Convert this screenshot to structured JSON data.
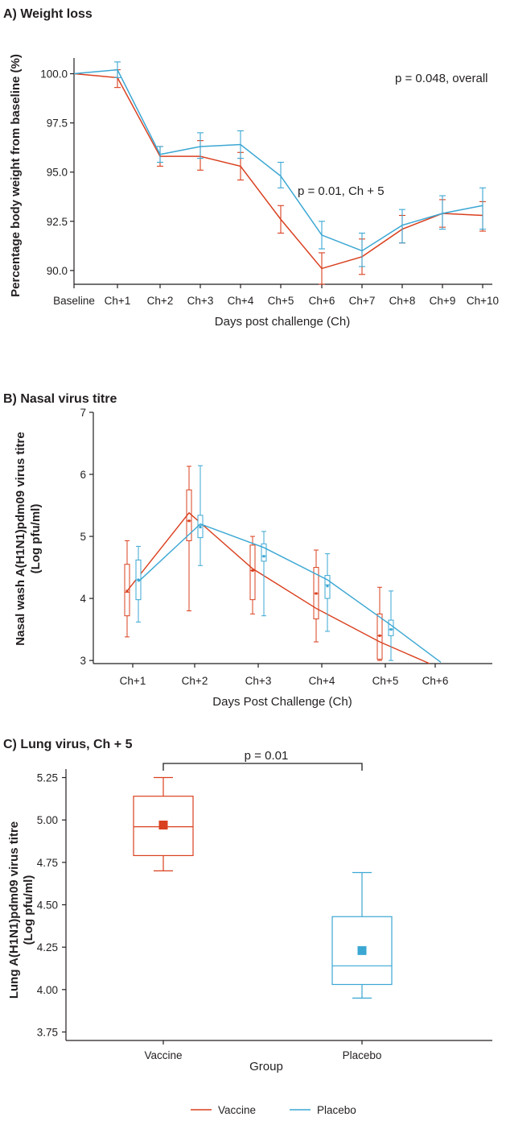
{
  "colors": {
    "vaccine": "#d9401f",
    "placebo": "#3ba7d3",
    "axis": "#231f20"
  },
  "legend": {
    "vaccine_label": "Vaccine",
    "placebo_label": "Placebo"
  },
  "chart_data": [
    {
      "panel": "A",
      "type": "line",
      "title": "A) Weight loss",
      "xlabel": "Days post challenge (Ch)",
      "ylabel": "Percentage body weight from baseline (%)",
      "categories": [
        "Baseline",
        "Ch+1",
        "Ch+2",
        "Ch+3",
        "Ch+4",
        "Ch+5",
        "Ch+6",
        "Ch+7",
        "Ch+8",
        "Ch+9",
        "Ch+10"
      ],
      "ylim": [
        89.3,
        100.8
      ],
      "yticks": [
        "100.0",
        "97.5",
        "95.0",
        "92.5",
        "90.0"
      ],
      "series": [
        {
          "name": "Vaccine",
          "color_key": "vaccine",
          "values": [
            100.0,
            99.8,
            95.8,
            95.8,
            95.3,
            92.6,
            90.1,
            90.7,
            92.1,
            92.9,
            92.8
          ],
          "err_low": [
            100.0,
            99.3,
            95.3,
            95.1,
            94.6,
            91.9,
            89.3,
            89.8,
            91.4,
            92.2,
            92.0
          ],
          "err_high": [
            100.0,
            100.2,
            96.3,
            96.6,
            96.0,
            93.3,
            90.9,
            91.6,
            92.8,
            93.6,
            93.5
          ]
        },
        {
          "name": "Placebo",
          "color_key": "placebo",
          "values": [
            100.0,
            100.2,
            95.9,
            96.3,
            96.4,
            94.8,
            91.8,
            91.0,
            92.3,
            92.9,
            93.3
          ],
          "err_low": [
            100.0,
            99.8,
            95.5,
            95.7,
            95.7,
            94.2,
            91.1,
            90.2,
            91.4,
            92.1,
            92.1
          ],
          "err_high": [
            100.0,
            100.6,
            96.3,
            97.0,
            97.1,
            95.5,
            92.5,
            91.9,
            93.1,
            93.8,
            94.2
          ]
        }
      ],
      "annotations": [
        "p = 0.048, overall",
        "p = 0.01, Ch + 5"
      ]
    },
    {
      "panel": "B",
      "type": "box",
      "title": "B) Nasal virus titre",
      "xlabel": "Days Post Challenge (Ch)",
      "ylabel_lines": [
        "Nasal wash A(H1N1)pdm09 virus titre",
        "(Log pfu/ml)"
      ],
      "categories": [
        "Ch+1",
        "Ch+2",
        "Ch+3",
        "Ch+4",
        "Ch+5",
        "Ch+6"
      ],
      "ylim": [
        2.95,
        7.0
      ],
      "yticks": [
        "3",
        "4",
        "5",
        "6",
        "7"
      ],
      "series": [
        {
          "name": "Vaccine",
          "color_key": "vaccine",
          "boxes": [
            {
              "min": 3.38,
              "q1": 3.72,
              "median": 4.1,
              "q3": 4.55,
              "max": 4.93,
              "mean": 4.12
            },
            {
              "min": 3.8,
              "q1": 4.93,
              "median": 5.25,
              "q3": 5.75,
              "max": 6.13,
              "mean": 5.25
            },
            {
              "min": 3.75,
              "q1": 3.98,
              "median": 4.45,
              "q3": 4.86,
              "max": 5.0,
              "mean": 4.45
            },
            {
              "min": 3.3,
              "q1": 3.67,
              "median": 4.08,
              "q3": 4.5,
              "max": 4.78,
              "mean": 4.08
            },
            {
              "min": 3.0,
              "q1": 3.02,
              "median": 3.4,
              "q3": 3.75,
              "max": 4.18,
              "mean": 3.4
            }
          ],
          "line": [
            4.12,
            5.38,
            4.48,
            3.84,
            3.3,
            2.95
          ]
        },
        {
          "name": "Placebo",
          "color_key": "placebo",
          "boxes": [
            {
              "min": 3.62,
              "q1": 3.98,
              "median": 4.3,
              "q3": 4.62,
              "max": 4.84,
              "mean": 4.3
            },
            {
              "min": 4.53,
              "q1": 4.98,
              "median": 5.18,
              "q3": 5.34,
              "max": 6.14,
              "mean": 5.15
            },
            {
              "min": 3.72,
              "q1": 4.6,
              "median": 4.68,
              "q3": 4.88,
              "max": 5.08,
              "mean": 4.68
            },
            {
              "min": 3.47,
              "q1": 4.0,
              "median": 4.22,
              "q3": 4.37,
              "max": 4.72,
              "mean": 4.2
            },
            {
              "min": 3.0,
              "q1": 3.4,
              "median": 3.5,
              "q3": 3.65,
              "max": 4.12,
              "mean": 3.5
            }
          ],
          "line": [
            4.27,
            5.2,
            4.82,
            4.3,
            3.57,
            2.97
          ]
        }
      ]
    },
    {
      "panel": "C",
      "type": "box",
      "title": "C) Lung virus, Ch + 5",
      "xlabel": "Group",
      "ylabel_lines": [
        "Lung A(H1N1)pdm09 virus titre",
        "(Log pfu/ml)"
      ],
      "categories": [
        "Vaccine",
        "Placebo"
      ],
      "ylim": [
        3.7,
        5.3
      ],
      "yticks": [
        "5.25",
        "5.00",
        "4.75",
        "4.50",
        "4.25",
        "4.00",
        "3.75"
      ],
      "boxes": [
        {
          "name": "Vaccine",
          "color_key": "vaccine",
          "min": 4.7,
          "q1": 4.79,
          "median": 4.96,
          "q3": 5.14,
          "max": 5.25,
          "mean": 4.97
        },
        {
          "name": "Placebo",
          "color_key": "placebo",
          "min": 3.95,
          "q1": 4.03,
          "median": 4.14,
          "q3": 4.43,
          "max": 4.69,
          "mean": 4.23
        }
      ],
      "annotations": [
        "p = 0.01"
      ]
    }
  ]
}
